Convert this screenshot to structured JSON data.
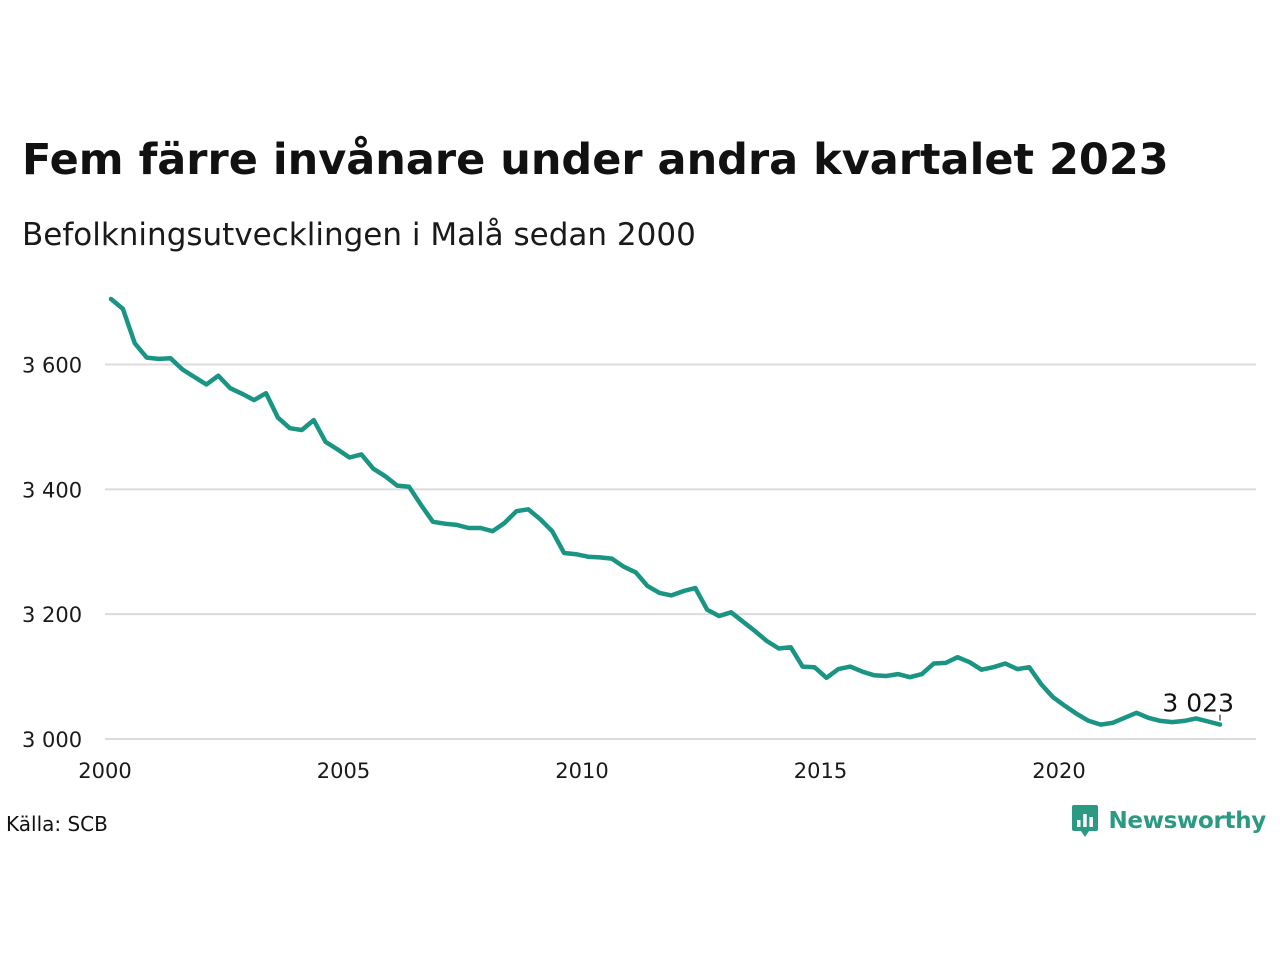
{
  "header": {
    "title": "Fem färre invånare under andra kvartalet 2023",
    "subtitle": "Befolkningsutvecklingen i Malå sedan 2000"
  },
  "footer": {
    "source": "Källa: SCB",
    "brand": "Newsworthy",
    "brand_icon": "bar-chart-speech-bubble-icon",
    "brand_color": "#2c9a82"
  },
  "chart_data": {
    "type": "line",
    "title": "Fem färre invånare under andra kvartalet 2023",
    "subtitle": "Befolkningsutvecklingen i Malå sedan 2000",
    "xlabel": "",
    "ylabel": "",
    "xlim": [
      2000,
      2024
    ],
    "ylim": [
      3000,
      3720
    ],
    "x_ticks": [
      "2000",
      "2005",
      "2010",
      "2015",
      "2020"
    ],
    "y_ticks": [
      "3 000",
      "3 200",
      "3 400",
      "3 600"
    ],
    "grid": true,
    "legend": "none",
    "line_color": "#1a9483",
    "end_label": "3 023",
    "series": [
      {
        "name": "",
        "x": [
          "2000-Q1",
          "2000-Q2",
          "2000-Q3",
          "2000-Q4",
          "2001-Q1",
          "2001-Q2",
          "2001-Q3",
          "2001-Q4",
          "2002-Q1",
          "2002-Q2",
          "2002-Q3",
          "2002-Q4",
          "2003-Q1",
          "2003-Q2",
          "2003-Q3",
          "2003-Q4",
          "2004-Q1",
          "2004-Q2",
          "2004-Q3",
          "2004-Q4",
          "2005-Q1",
          "2005-Q2",
          "2005-Q3",
          "2005-Q4",
          "2006-Q1",
          "2006-Q2",
          "2006-Q3",
          "2006-Q4",
          "2007-Q1",
          "2007-Q2",
          "2007-Q3",
          "2007-Q4",
          "2008-Q1",
          "2008-Q2",
          "2008-Q3",
          "2008-Q4",
          "2009-Q1",
          "2009-Q2",
          "2009-Q3",
          "2009-Q4",
          "2010-Q1",
          "2010-Q2",
          "2010-Q3",
          "2010-Q4",
          "2011-Q1",
          "2011-Q2",
          "2011-Q3",
          "2011-Q4",
          "2012-Q1",
          "2012-Q2",
          "2012-Q3",
          "2012-Q4",
          "2013-Q1",
          "2013-Q2",
          "2013-Q3",
          "2013-Q4",
          "2014-Q1",
          "2014-Q2",
          "2014-Q3",
          "2014-Q4",
          "2015-Q1",
          "2015-Q2",
          "2015-Q3",
          "2015-Q4",
          "2016-Q1",
          "2016-Q2",
          "2016-Q3",
          "2016-Q4",
          "2017-Q1",
          "2017-Q2",
          "2017-Q3",
          "2017-Q4",
          "2018-Q1",
          "2018-Q2",
          "2018-Q3",
          "2018-Q4",
          "2019-Q1",
          "2019-Q2",
          "2019-Q3",
          "2019-Q4",
          "2020-Q1",
          "2020-Q2",
          "2020-Q3",
          "2020-Q4",
          "2021-Q1",
          "2021-Q2",
          "2021-Q3",
          "2021-Q4",
          "2022-Q1",
          "2022-Q2",
          "2022-Q3",
          "2022-Q4",
          "2023-Q1",
          "2023-Q2"
        ],
        "values": [
          3705,
          3689,
          3634,
          3611,
          3609,
          3610,
          3592,
          3580,
          3568,
          3582,
          3562,
          3553,
          3543,
          3554,
          3515,
          3498,
          3495,
          3511,
          3476,
          3464,
          3451,
          3456,
          3433,
          3421,
          3406,
          3404,
          3375,
          3348,
          3345,
          3343,
          3338,
          3338,
          3333,
          3346,
          3365,
          3368,
          3352,
          3333,
          3298,
          3296,
          3292,
          3291,
          3289,
          3276,
          3267,
          3245,
          3234,
          3230,
          3237,
          3242,
          3207,
          3197,
          3203,
          3188,
          3173,
          3157,
          3145,
          3147,
          3116,
          3115,
          3098,
          3112,
          3116,
          3108,
          3102,
          3101,
          3104,
          3099,
          3104,
          3121,
          3122,
          3131,
          3123,
          3111,
          3115,
          3121,
          3112,
          3115,
          3088,
          3067,
          3053,
          3040,
          3029,
          3023,
          3026,
          3034,
          3042,
          3034,
          3029,
          3027,
          3029,
          3033,
          3028,
          3023
        ]
      }
    ]
  }
}
